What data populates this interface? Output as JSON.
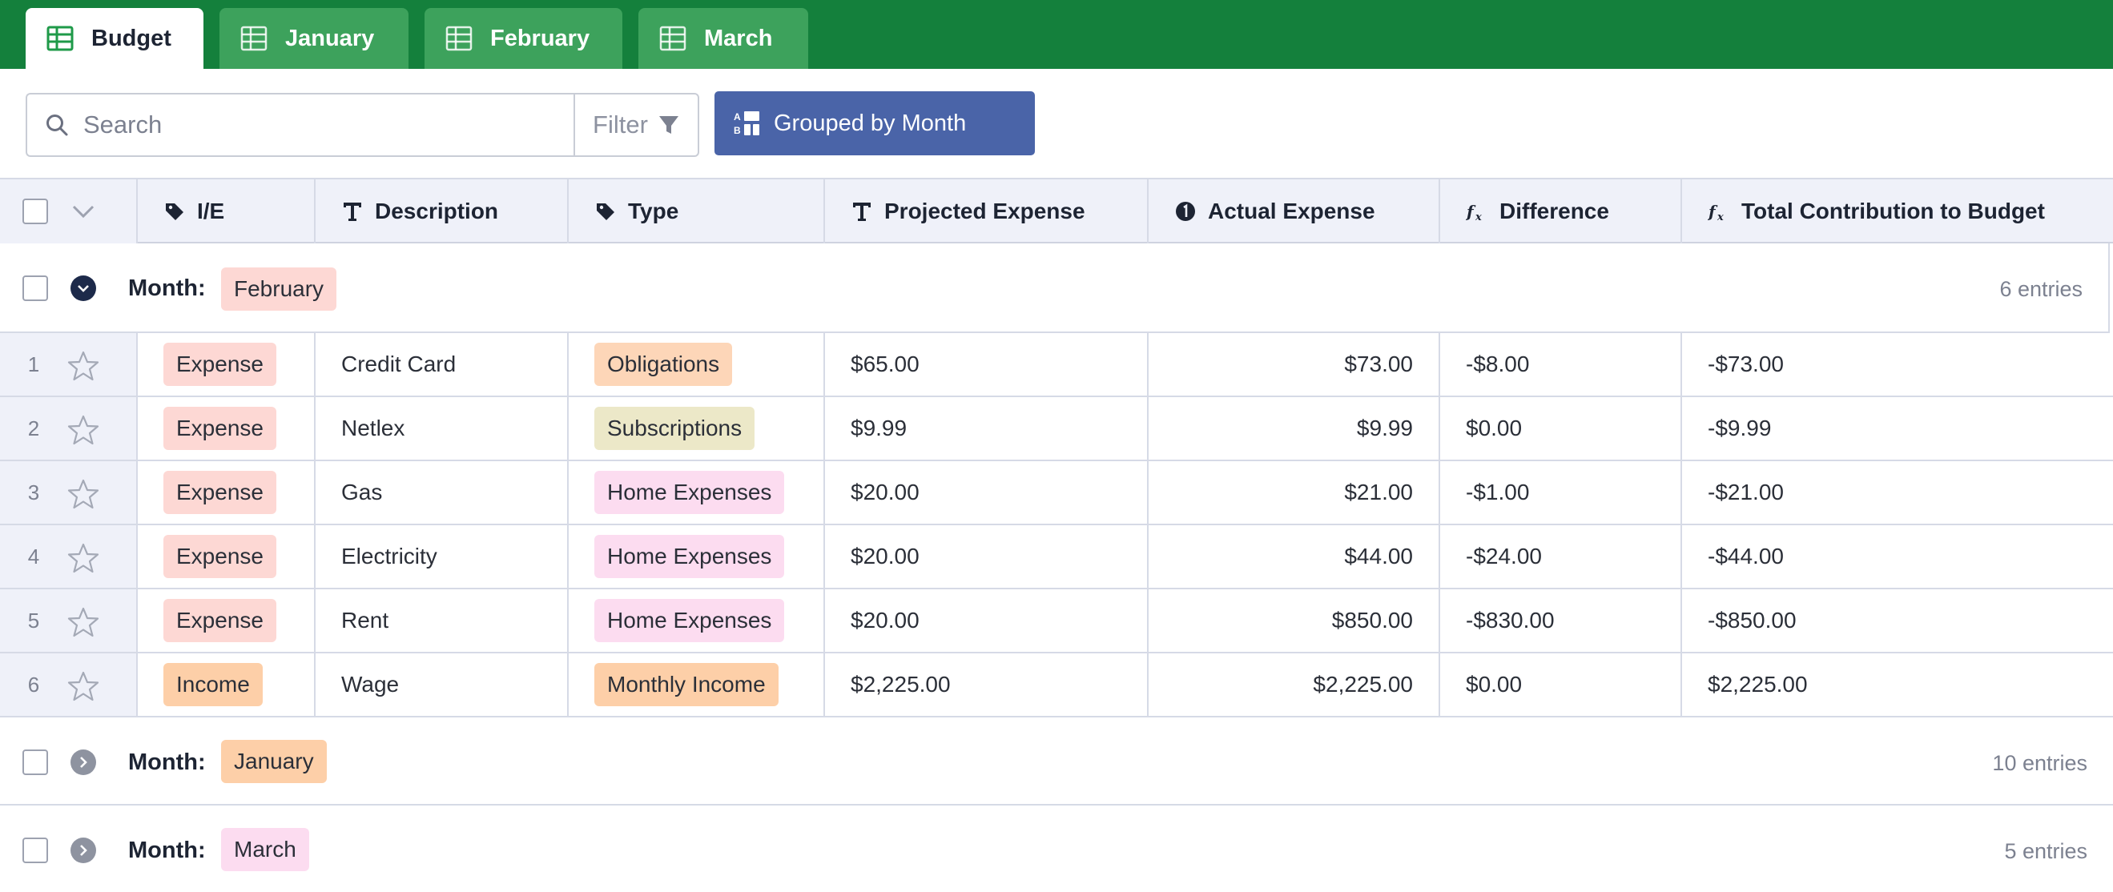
{
  "tabs": [
    {
      "label": "Budget",
      "active": true
    },
    {
      "label": "January",
      "active": false
    },
    {
      "label": "February",
      "active": false
    },
    {
      "label": "March",
      "active": false
    }
  ],
  "toolbar": {
    "search_placeholder": "Search",
    "search_value": "",
    "filter_label": "Filter",
    "grouped_label": "Grouped by Month"
  },
  "columns": [
    {
      "label": "I/E",
      "icon": "tag-icon"
    },
    {
      "label": "Description",
      "icon": "text-type-icon"
    },
    {
      "label": "Type",
      "icon": "tag-icon"
    },
    {
      "label": "Projected Expense",
      "icon": "text-type-icon"
    },
    {
      "label": "Actual Expense",
      "icon": "number-type-icon"
    },
    {
      "label": "Difference",
      "icon": "formula-icon"
    },
    {
      "label": "Total Contribution to Budget",
      "icon": "formula-icon"
    }
  ],
  "groups": [
    {
      "label": "Month:",
      "value": "February",
      "color": "#fdd8d4",
      "count": "6 entries",
      "expanded": true,
      "rows": [
        {
          "num": "1",
          "ie": "Expense",
          "ie_color": "#fdd8d4",
          "description": "Credit Card",
          "type": "Obligations",
          "type_color": "#fdd6b8",
          "projected": "$65.00",
          "actual": "$73.00",
          "difference": "-$8.00",
          "total": "-$73.00"
        },
        {
          "num": "2",
          "ie": "Expense",
          "ie_color": "#fdd8d4",
          "description": "Netlex",
          "type": "Subscriptions",
          "type_color": "#ece8c8",
          "projected": "$9.99",
          "actual": "$9.99",
          "difference": "$0.00",
          "total": "-$9.99"
        },
        {
          "num": "3",
          "ie": "Expense",
          "ie_color": "#fdd8d4",
          "description": "Gas",
          "type": "Home Expenses",
          "type_color": "#fcdcf0",
          "projected": "$20.00",
          "actual": "$21.00",
          "difference": "-$1.00",
          "total": "-$21.00"
        },
        {
          "num": "4",
          "ie": "Expense",
          "ie_color": "#fdd8d4",
          "description": "Electricity",
          "type": "Home Expenses",
          "type_color": "#fcdcf0",
          "projected": "$20.00",
          "actual": "$44.00",
          "difference": "-$24.00",
          "total": "-$44.00"
        },
        {
          "num": "5",
          "ie": "Expense",
          "ie_color": "#fdd8d4",
          "description": "Rent",
          "type": "Home Expenses",
          "type_color": "#fcdcf0",
          "projected": "$20.00",
          "actual": "$850.00",
          "difference": "-$830.00",
          "total": "-$850.00"
        },
        {
          "num": "6",
          "ie": "Income",
          "ie_color": "#fdcfa8",
          "description": "Wage",
          "type": "Monthly Income",
          "type_color": "#fdcfa8",
          "projected": "$2,225.00",
          "actual": "$2,225.00",
          "difference": "$0.00",
          "total": "$2,225.00"
        }
      ]
    },
    {
      "label": "Month:",
      "value": "January",
      "color": "#fdcfa8",
      "count": "10 entries",
      "expanded": false,
      "rows": []
    },
    {
      "label": "Month:",
      "value": "March",
      "color": "#fcdcf0",
      "count": "5 entries",
      "expanded": false,
      "rows": []
    }
  ]
}
